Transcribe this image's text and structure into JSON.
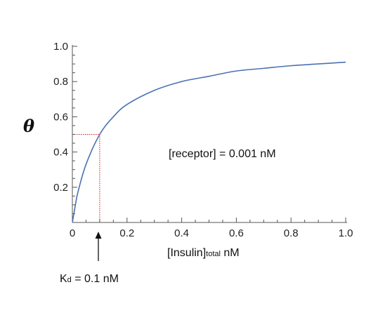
{
  "chart_data": {
    "type": "line",
    "title": "",
    "ylabel": "θ",
    "xlabel": {
      "main": "[Insulin]",
      "sub": "total",
      "unit": " nM"
    },
    "xlim": [
      0,
      1.0
    ],
    "ylim": [
      0,
      1.0
    ],
    "x_ticks": [
      "0",
      "0.2",
      "0.4",
      "0.6",
      "0.8",
      "1.0"
    ],
    "y_ticks": [
      "0.2",
      "0.4",
      "0.6",
      "0.8",
      "1.0"
    ],
    "grid": false,
    "series": [
      {
        "color": "#4a72b0",
        "x": [
          0,
          0.01,
          0.02,
          0.05,
          0.1,
          0.15,
          0.2,
          0.3,
          0.4,
          0.5,
          0.6,
          0.7,
          0.8,
          0.9,
          1.0
        ],
        "y": [
          0,
          0.09,
          0.17,
          0.33,
          0.5,
          0.6,
          0.67,
          0.75,
          0.8,
          0.83,
          0.86,
          0.875,
          0.89,
          0.9,
          0.91
        ]
      }
    ],
    "reference_point": {
      "x": 0.1,
      "y": 0.5,
      "color": "#e01010"
    },
    "annotations": {
      "receptor": "[receptor] = 0.001 nM",
      "kd_main": "K",
      "kd_sub": "d",
      "kd_rest": " = 0.1 nM"
    }
  }
}
